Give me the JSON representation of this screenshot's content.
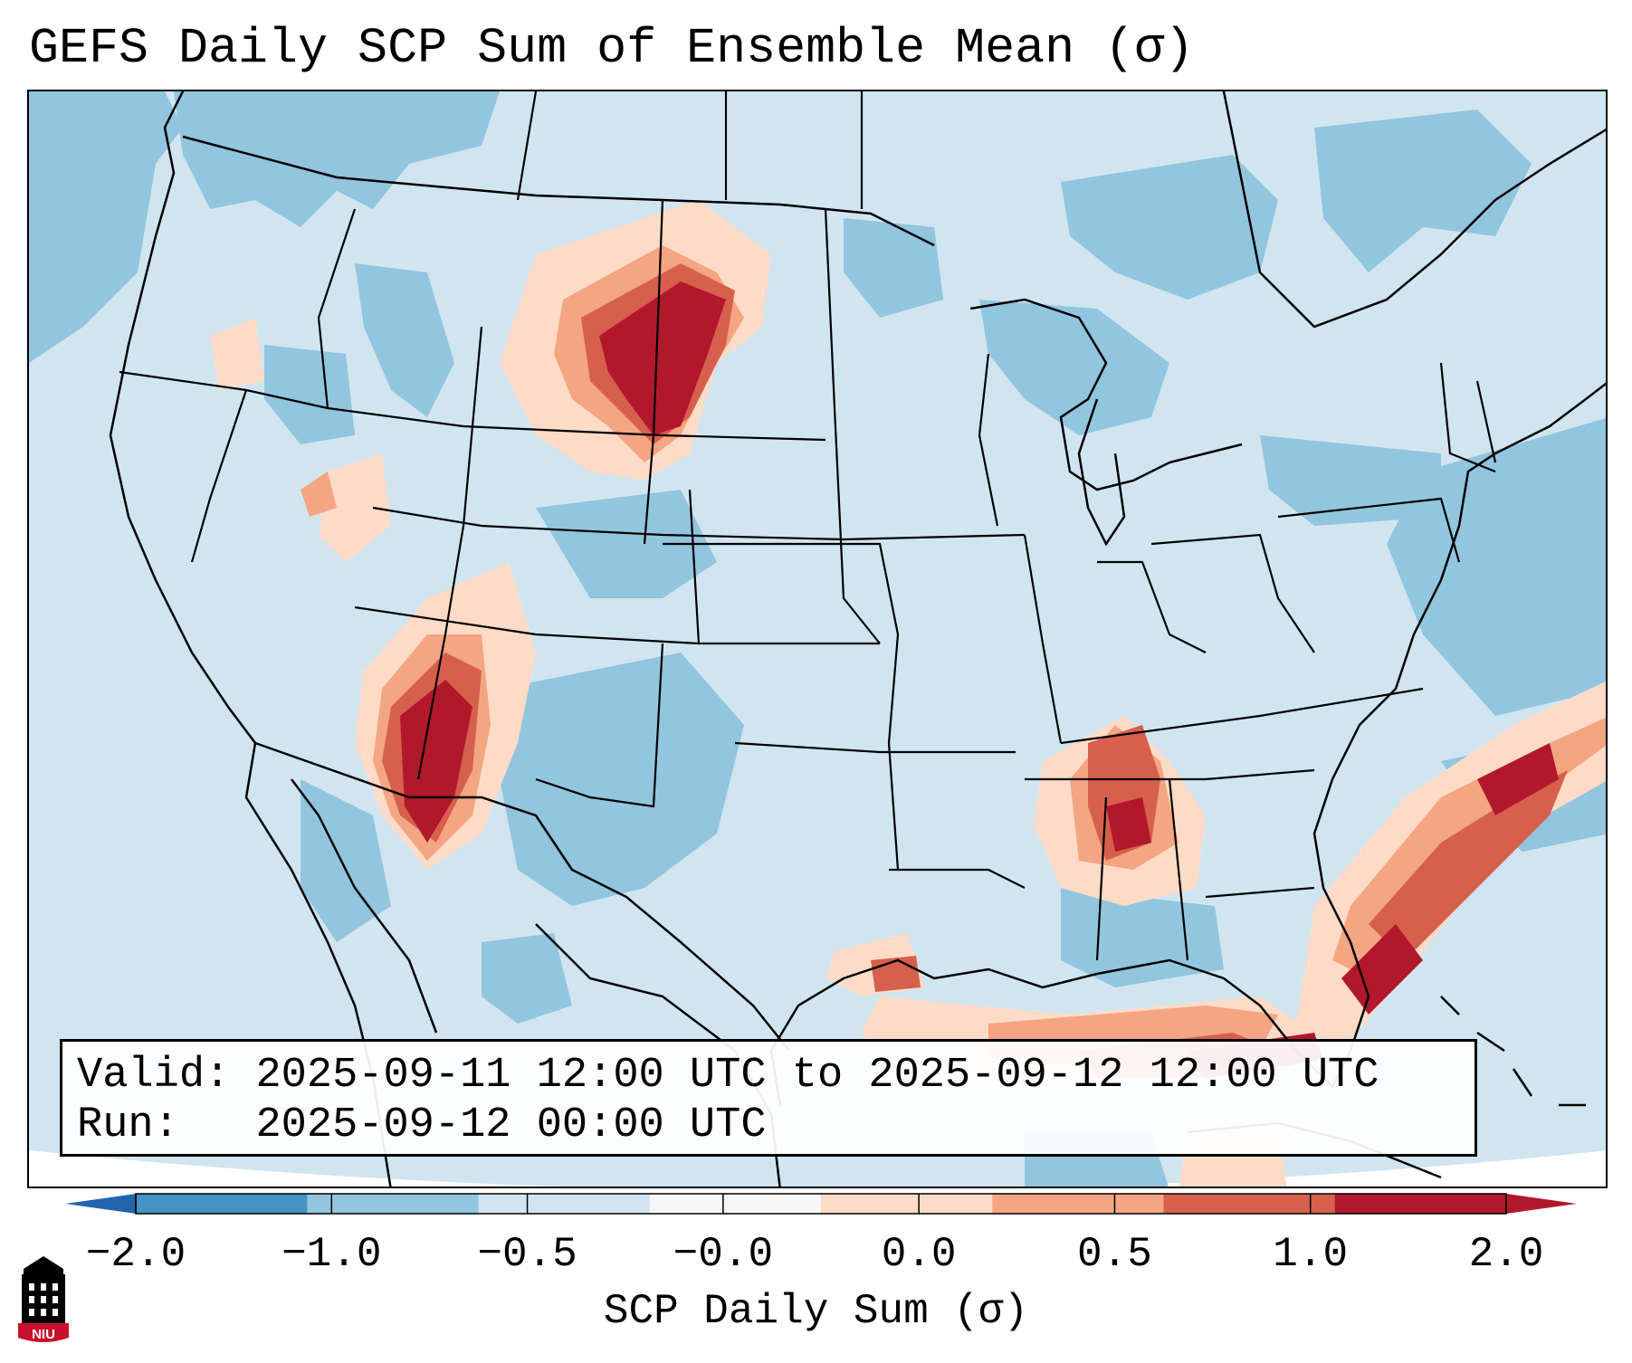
{
  "title": "GEFS Daily SCP Sum of Ensemble Mean (σ)",
  "info": {
    "valid_label": "Valid:",
    "valid_value": "2025-09-11 12:00 UTC to 2025-09-12 12:00 UTC",
    "run_label": "Run:",
    "run_value": "2025-09-12 00:00 UTC"
  },
  "colorbar": {
    "label": "SCP Daily Sum (σ)",
    "ticks": [
      "−2.0",
      "−1.0",
      "−0.5",
      "−0.0",
      "0.0",
      "0.5",
      "1.0",
      "2.0"
    ],
    "colors": [
      "#4393c3",
      "#92c5de",
      "#d1e5f0",
      "#f7f7f7",
      "#fddbc7",
      "#f4a582",
      "#d6604d",
      "#b2182b"
    ],
    "extend_low_color": "#2166ac",
    "extend_high_color": "#b2182b"
  },
  "logo": {
    "text": "NIU",
    "colors": {
      "building": "#000000",
      "accent": "#c8102e"
    }
  },
  "map": {
    "background_color": "#d1e5f0",
    "outside_projection_color": "#ffffff",
    "regions": [
      "northern-plains-red-max",
      "four-corners-red-max",
      "mid-south-red-max",
      "florida-atlantic-red-band",
      "gulf-of-mexico-red-band",
      "pacific-blue-area",
      "atlantic-blue-area",
      "canada-blue-area"
    ]
  }
}
